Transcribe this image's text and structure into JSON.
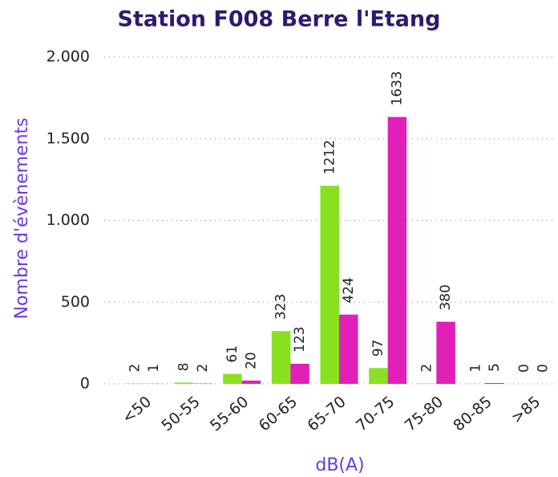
{
  "chart_data": {
    "type": "bar",
    "title": "Station F008 Berre l'Etang",
    "x_label": "dB(A)",
    "y_label": "Nombre d'évènements",
    "categories": [
      "<50",
      "50-55",
      "55-60",
      "60-65",
      "65-70",
      "70-75",
      "75-80",
      "80-85",
      ">85"
    ],
    "series": [
      {
        "color": "#88e021",
        "values": [
          2,
          8,
          61,
          323,
          1212,
          97,
          2,
          1,
          0
        ]
      },
      {
        "color": "#e020b8",
        "values": [
          1,
          2,
          20,
          123,
          424,
          1633,
          380,
          5,
          0
        ]
      }
    ],
    "ylim": [
      0,
      2000
    ],
    "yticks": [
      0,
      500,
      {
        "value": 1000,
        "label": "1.000"
      },
      {
        "value": 1500,
        "label": "1.500"
      },
      {
        "value": 2000,
        "label": "2.000"
      }
    ],
    "grid": true
  }
}
